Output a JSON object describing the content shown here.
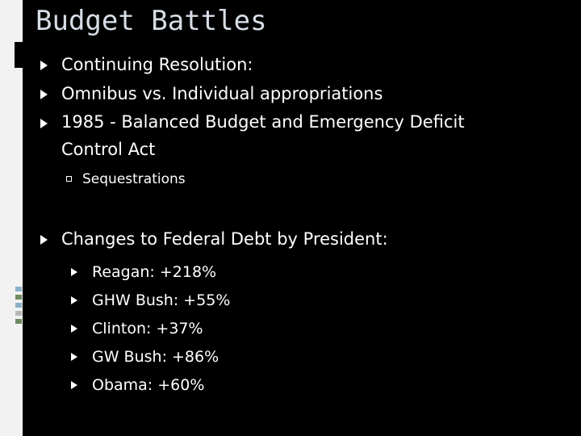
{
  "slide": {
    "title": "Budget Battles",
    "bullets": [
      "Continuing Resolution:",
      "Omnibus vs. Individual appropriations",
      "1985 - Balanced Budget and Emergency Deficit",
      "Control Act"
    ],
    "sub_bullet": "Sequestrations",
    "debt_heading": "Changes to Federal Debt by President:",
    "presidents": [
      "Reagan:  +218%",
      "GHW Bush: +55%",
      "Clinton: +37%",
      "GW Bush: +86%",
      "Obama: +60%"
    ]
  }
}
